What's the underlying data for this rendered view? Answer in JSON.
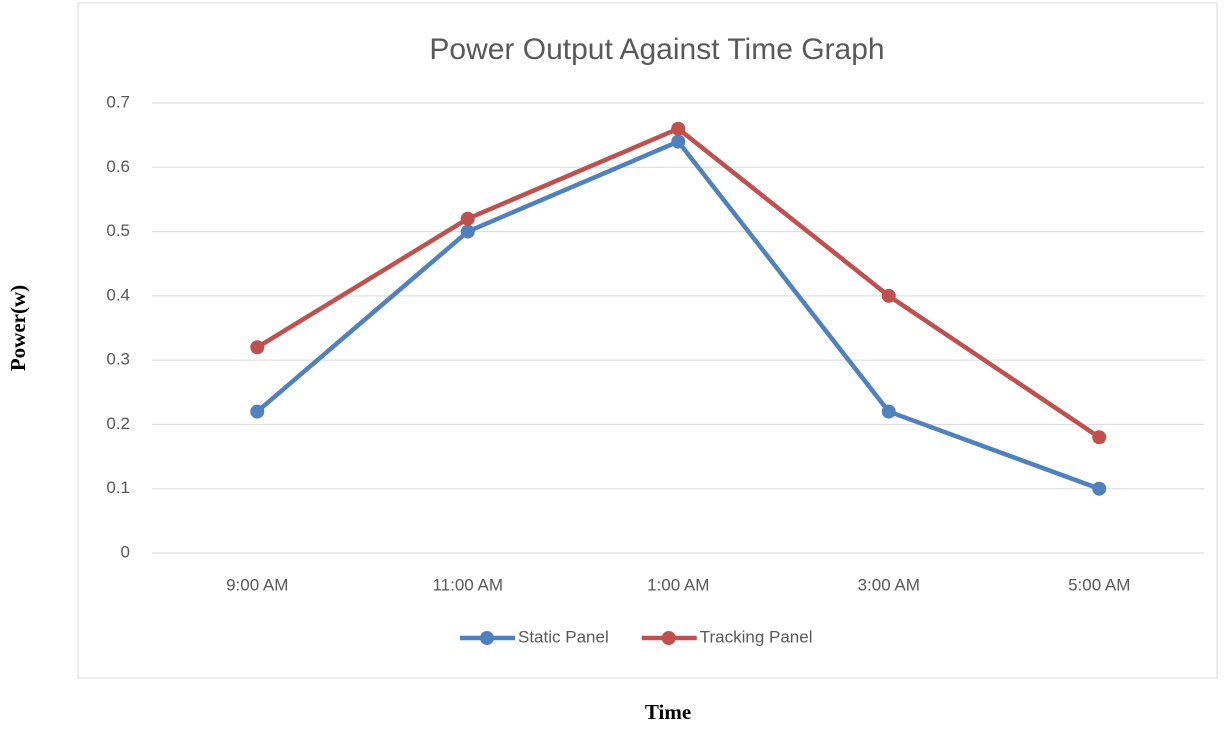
{
  "chart_data": {
    "type": "line",
    "title": "Power Output Against Time Graph",
    "x_label": "Time",
    "y_label": "Power(w)",
    "categories": [
      "9:00 AM",
      "11:00 AM",
      "1:00 AM",
      "3:00 AM",
      "5:00 AM"
    ],
    "series": [
      {
        "name": "Static Panel",
        "color": "#4f81bd",
        "values": [
          0.22,
          0.5,
          0.64,
          0.22,
          0.1
        ]
      },
      {
        "name": "Tracking Panel",
        "color": "#c0504d",
        "values": [
          0.32,
          0.52,
          0.66,
          0.4,
          0.18
        ]
      }
    ],
    "ylim": [
      0,
      0.7
    ],
    "yticks": [
      0,
      0.1,
      0.2,
      0.3,
      0.4,
      0.5,
      0.6,
      0.7
    ],
    "grid": true,
    "legend": "bottom"
  }
}
